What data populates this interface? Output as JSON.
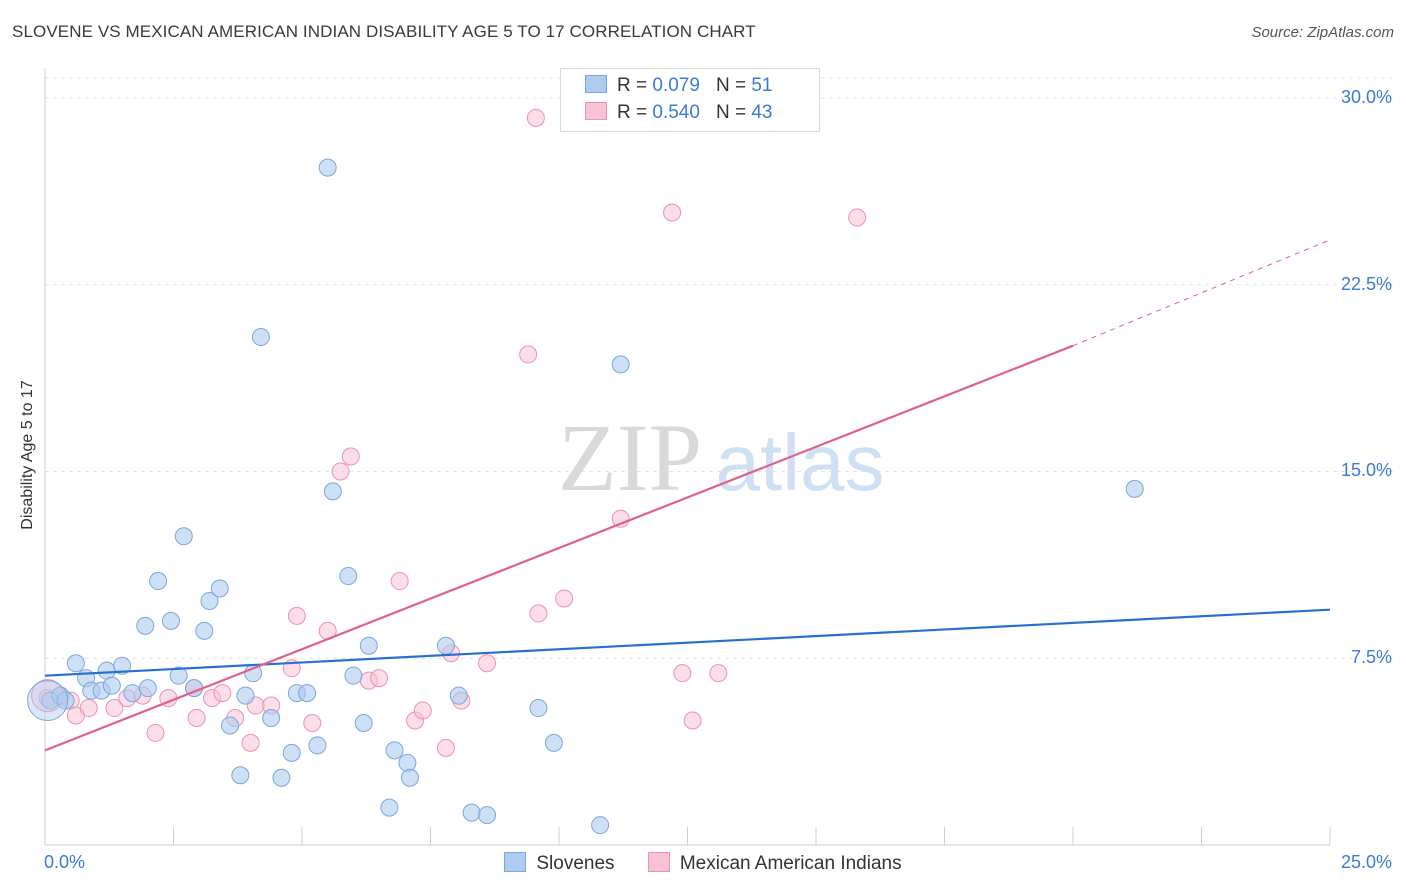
{
  "title": "SLOVENE VS MEXICAN AMERICAN INDIAN DISABILITY AGE 5 TO 17 CORRELATION CHART",
  "source": "Source: ZipAtlas.com",
  "watermark": {
    "zip": "ZIP",
    "atlas": "atlas"
  },
  "legend_top": [
    {
      "r_label": "R =",
      "r_value": "0.079",
      "n_label": "N =",
      "n_value": "51"
    },
    {
      "r_label": "R =",
      "r_value": "0.540",
      "n_label": "N =",
      "n_value": "43"
    }
  ],
  "colors": {
    "blue_fill": "#aecbf0",
    "blue_stroke": "#7ea6dc",
    "blue_line": "#2a6fd0",
    "pink_fill": "#f7c2d3",
    "pink_stroke": "#eb93b0",
    "pink_line": "#e0608c",
    "tick_text": "#3a7bd5"
  },
  "chart_data": {
    "type": "scatter",
    "title": "SLOVENE VS MEXICAN AMERICAN INDIAN DISABILITY AGE 5 TO 17 CORRELATION CHART",
    "xlabel": "",
    "ylabel": "Disability Age 5 to 17",
    "xlim": [
      0,
      25
    ],
    "ylim": [
      0,
      30.8
    ],
    "x_tick_labels": [
      "0.0%",
      "25.0%"
    ],
    "y_ticks": [
      7.5,
      15.0,
      22.5,
      30.0
    ],
    "y_tick_labels": [
      "7.5%",
      "15.0%",
      "22.5%",
      "30.0%"
    ],
    "grid": true,
    "legend_position": "bottom",
    "series": [
      {
        "name": "Slovenes",
        "color": "#aecbf0",
        "points": [
          [
            0.1,
            5.8
          ],
          [
            0.3,
            6.0
          ],
          [
            0.4,
            5.8
          ],
          [
            0.6,
            7.3
          ],
          [
            0.8,
            6.7
          ],
          [
            0.9,
            6.2
          ],
          [
            1.1,
            6.2
          ],
          [
            1.2,
            7.0
          ],
          [
            1.3,
            6.4
          ],
          [
            1.5,
            7.2
          ],
          [
            1.7,
            6.1
          ],
          [
            1.95,
            8.8
          ],
          [
            2.0,
            6.3
          ],
          [
            2.2,
            10.6
          ],
          [
            2.45,
            9.0
          ],
          [
            2.6,
            6.8
          ],
          [
            2.7,
            12.4
          ],
          [
            2.9,
            6.3
          ],
          [
            3.1,
            8.6
          ],
          [
            3.2,
            9.8
          ],
          [
            3.4,
            10.3
          ],
          [
            3.6,
            4.8
          ],
          [
            3.8,
            2.8
          ],
          [
            3.9,
            6.0
          ],
          [
            4.05,
            6.9
          ],
          [
            4.2,
            20.4
          ],
          [
            4.4,
            5.1
          ],
          [
            4.6,
            2.7
          ],
          [
            4.8,
            3.7
          ],
          [
            4.9,
            6.1
          ],
          [
            5.1,
            6.1
          ],
          [
            5.3,
            4.0
          ],
          [
            5.5,
            27.2
          ],
          [
            5.6,
            14.2
          ],
          [
            5.9,
            10.8
          ],
          [
            6.0,
            6.8
          ],
          [
            6.2,
            4.9
          ],
          [
            6.3,
            8.0
          ],
          [
            6.7,
            1.5
          ],
          [
            6.8,
            3.8
          ],
          [
            7.05,
            3.3
          ],
          [
            7.1,
            2.7
          ],
          [
            7.8,
            8.0
          ],
          [
            8.05,
            6.0
          ],
          [
            8.3,
            1.3
          ],
          [
            8.6,
            1.2
          ],
          [
            9.6,
            5.5
          ],
          [
            9.9,
            4.1
          ],
          [
            10.8,
            0.8
          ],
          [
            11.2,
            19.3
          ],
          [
            21.2,
            14.3
          ]
        ]
      },
      {
        "name": "Mexican American Indians",
        "color": "#f7c2d3",
        "points": [
          [
            0.05,
            5.9
          ],
          [
            0.3,
            6.0
          ],
          [
            0.5,
            5.8
          ],
          [
            0.6,
            5.2
          ],
          [
            0.85,
            5.5
          ],
          [
            1.35,
            5.5
          ],
          [
            1.6,
            5.9
          ],
          [
            1.9,
            6.0
          ],
          [
            2.15,
            4.5
          ],
          [
            2.4,
            5.9
          ],
          [
            2.9,
            6.3
          ],
          [
            2.95,
            5.1
          ],
          [
            3.25,
            5.9
          ],
          [
            3.45,
            6.1
          ],
          [
            3.7,
            5.1
          ],
          [
            4.0,
            4.1
          ],
          [
            4.1,
            5.6
          ],
          [
            4.4,
            5.6
          ],
          [
            4.8,
            7.1
          ],
          [
            4.9,
            9.2
          ],
          [
            5.2,
            4.9
          ],
          [
            5.5,
            8.6
          ],
          [
            5.75,
            15.0
          ],
          [
            5.95,
            15.6
          ],
          [
            6.3,
            6.6
          ],
          [
            6.5,
            6.7
          ],
          [
            6.9,
            10.6
          ],
          [
            7.2,
            5.0
          ],
          [
            7.35,
            5.4
          ],
          [
            7.8,
            3.9
          ],
          [
            7.9,
            7.7
          ],
          [
            8.1,
            5.8
          ],
          [
            8.6,
            7.3
          ],
          [
            9.4,
            19.7
          ],
          [
            9.55,
            29.2
          ],
          [
            9.6,
            9.3
          ],
          [
            10.1,
            9.9
          ],
          [
            11.2,
            13.1
          ],
          [
            12.2,
            25.4
          ],
          [
            12.4,
            6.9
          ],
          [
            12.6,
            5.0
          ],
          [
            13.1,
            6.9
          ],
          [
            15.8,
            25.2
          ]
        ]
      }
    ],
    "trendlines": [
      {
        "series": "Slovenes",
        "x": [
          0,
          25
        ],
        "y": [
          6.8,
          9.45
        ],
        "style": "solid"
      },
      {
        "series": "Mexican American Indians",
        "x": [
          0,
          20
        ],
        "y": [
          3.8,
          20.05
        ],
        "style": "solid"
      },
      {
        "series": "Mexican American Indians",
        "x": [
          20,
          25
        ],
        "y": [
          20.05,
          24.3
        ],
        "style": "dashed"
      }
    ]
  }
}
